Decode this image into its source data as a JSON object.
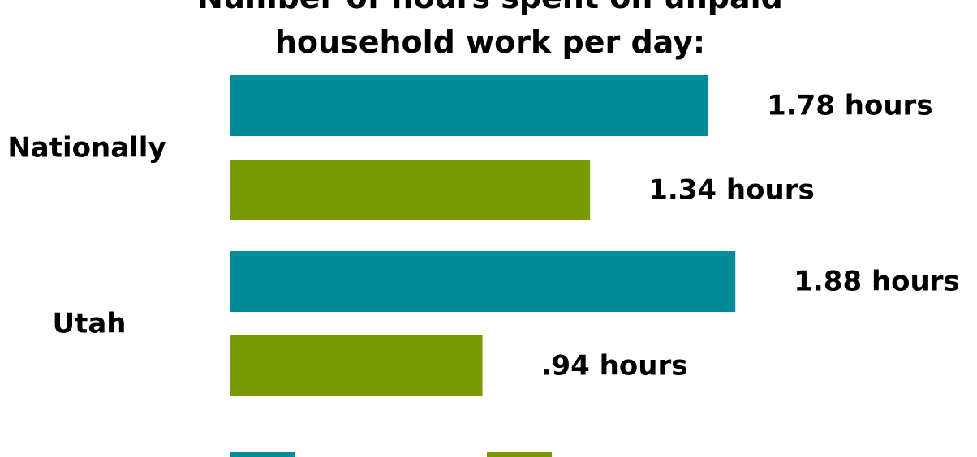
{
  "chart_data": {
    "type": "bar",
    "orientation": "horizontal",
    "title_lines": [
      "Number of hours spent on unpaid",
      "household work per day:"
    ],
    "categories": [
      "Nationally",
      "Utah"
    ],
    "series": [
      {
        "values": [
          1.78,
          1.88
        ],
        "labels": [
          "1.78 hours",
          "1.88 hours"
        ],
        "color": "#008B98"
      },
      {
        "values": [
          1.34,
          0.94
        ],
        "labels": [
          "1.34 hours",
          ".94 hours"
        ],
        "color": "#7A9A05"
      }
    ],
    "xlim": [
      0,
      2
    ],
    "grid": false,
    "legend": {
      "placement": "bottom"
    }
  }
}
